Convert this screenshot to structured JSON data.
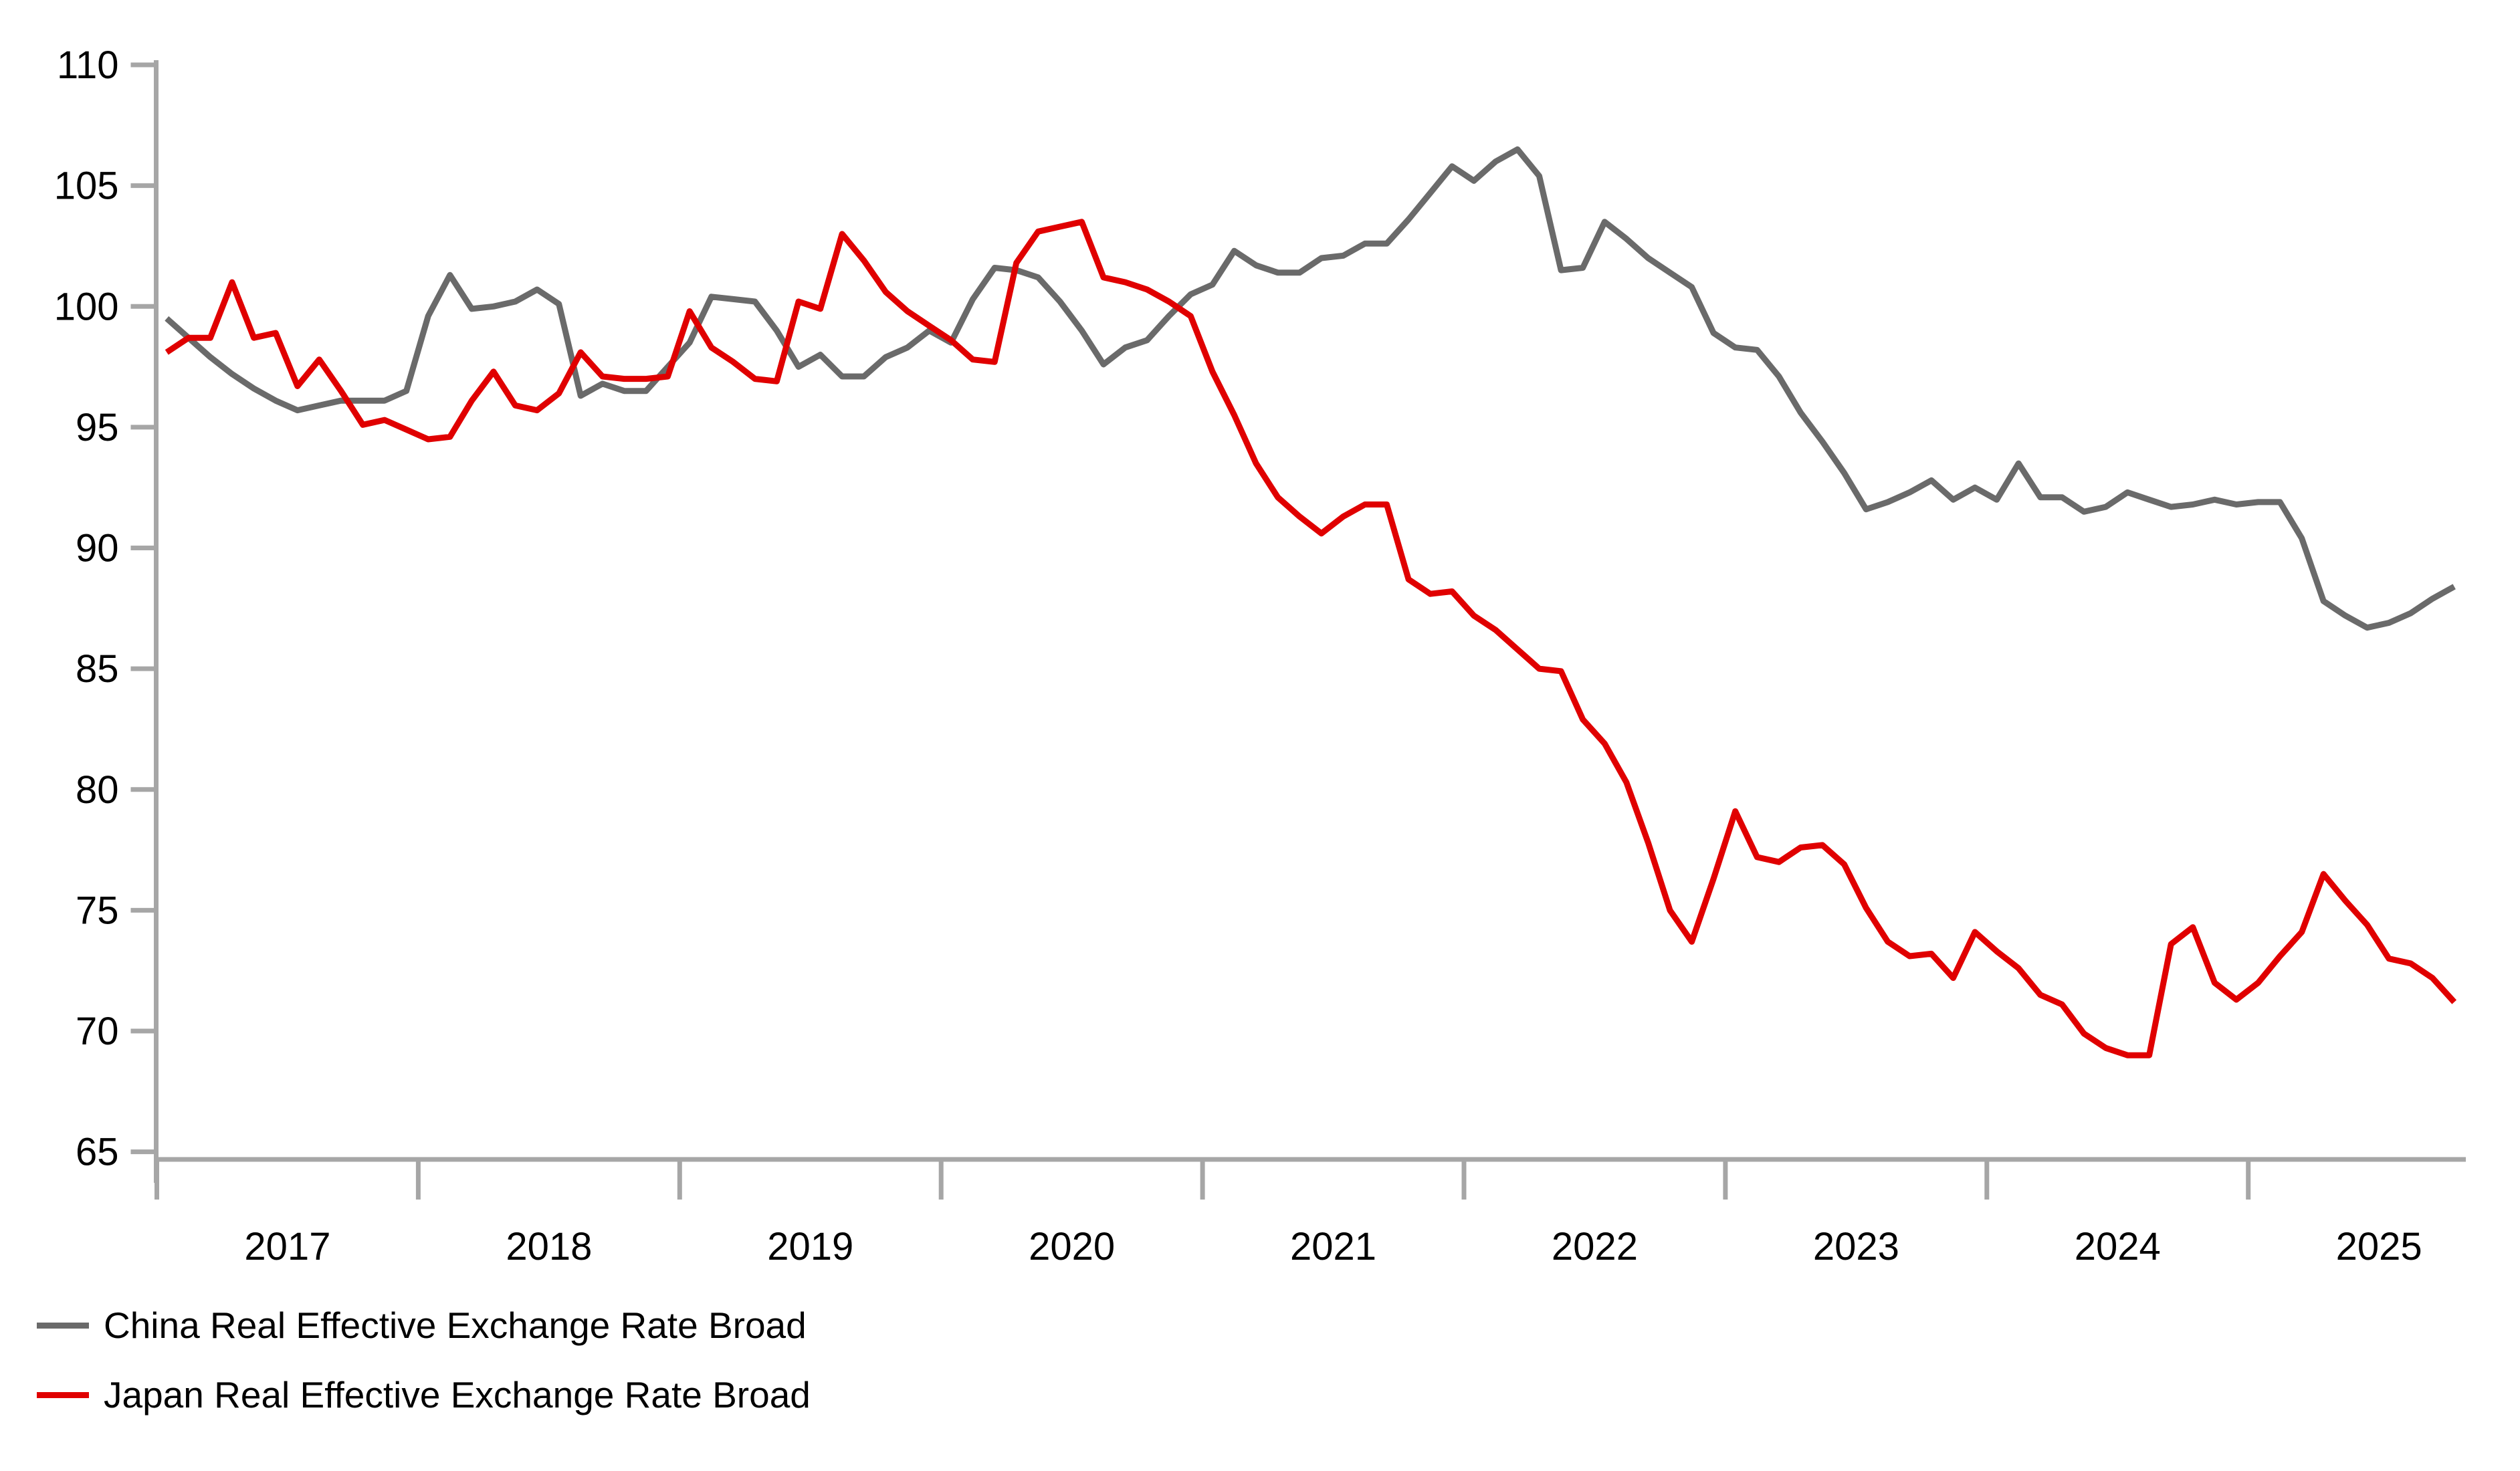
{
  "chart_data": {
    "type": "line",
    "title": "",
    "xlabel": "",
    "ylabel": "",
    "frequency": "monthly",
    "start_period": "2017-01",
    "end_period": "2025-10",
    "grid": false,
    "legend_position": "bottom-left",
    "y_axis": {
      "min": 65,
      "max": 110,
      "step": 5,
      "tick_labels": [
        65,
        70,
        75,
        80,
        85,
        90,
        95,
        100,
        105,
        110
      ]
    },
    "x_axis": {
      "year_labels": [
        "2017",
        "2018",
        "2019",
        "2020",
        "2021",
        "2022",
        "2023",
        "2024",
        "2025"
      ]
    },
    "axis_color": "#a6a6a6",
    "series": [
      {
        "name": "China Real Effective Exchange Rate Broad",
        "color": "#6a6a6a",
        "values": [
          99.5,
          98.7,
          97.9,
          97.2,
          96.6,
          96.1,
          95.7,
          95.9,
          96.1,
          96.1,
          96.1,
          96.5,
          99.6,
          101.3,
          99.9,
          100.0,
          100.2,
          100.7,
          100.1,
          96.3,
          96.8,
          96.5,
          96.5,
          97.5,
          98.5,
          100.4,
          100.3,
          100.2,
          99.0,
          97.5,
          98.0,
          97.1,
          97.1,
          97.9,
          98.3,
          99.0,
          98.5,
          100.3,
          101.6,
          101.5,
          101.2,
          100.2,
          99.0,
          97.6,
          98.3,
          98.6,
          99.6,
          100.5,
          100.9,
          102.3,
          101.7,
          101.4,
          101.4,
          102.0,
          102.1,
          102.6,
          102.6,
          103.6,
          104.7,
          105.8,
          105.2,
          106.0,
          106.5,
          105.4,
          101.5,
          101.6,
          103.5,
          102.8,
          102.0,
          101.4,
          100.8,
          98.9,
          98.3,
          98.2,
          97.1,
          95.6,
          94.4,
          93.1,
          91.6,
          91.9,
          92.3,
          92.8,
          92.0,
          92.5,
          92.0,
          93.5,
          92.1,
          92.1,
          91.5,
          91.7,
          92.3,
          92.0,
          91.7,
          91.8,
          92.0,
          91.8,
          91.9,
          91.9,
          90.4,
          87.8,
          87.2,
          86.7,
          86.9,
          87.3,
          87.9,
          88.4
        ]
      },
      {
        "name": "Japan Real Effective Exchange Rate Broad",
        "color": "#e00000",
        "values": [
          98.1,
          98.7,
          98.7,
          101.0,
          98.7,
          98.9,
          96.7,
          97.8,
          96.5,
          95.1,
          95.3,
          94.9,
          94.5,
          94.6,
          96.1,
          97.3,
          95.9,
          95.7,
          96.4,
          98.1,
          97.1,
          97.0,
          97.0,
          97.1,
          99.8,
          98.3,
          97.7,
          97.0,
          96.9,
          100.2,
          99.9,
          103.0,
          101.9,
          100.6,
          99.8,
          99.2,
          98.6,
          97.8,
          97.7,
          101.8,
          103.1,
          103.3,
          103.5,
          101.2,
          101.0,
          100.7,
          100.2,
          99.6,
          97.3,
          95.5,
          93.5,
          92.1,
          91.3,
          90.6,
          91.3,
          91.8,
          91.8,
          88.7,
          88.1,
          88.2,
          87.2,
          86.6,
          85.8,
          85.0,
          84.9,
          82.9,
          81.9,
          80.3,
          77.8,
          75.0,
          73.7,
          76.3,
          79.1,
          77.2,
          77.0,
          77.6,
          77.7,
          76.9,
          75.1,
          73.7,
          73.1,
          73.2,
          72.2,
          74.1,
          73.3,
          72.6,
          71.5,
          71.1,
          69.9,
          69.3,
          69.0,
          69.0,
          73.6,
          74.3,
          72.0,
          71.3,
          72.0,
          73.1,
          74.1,
          76.5,
          75.4,
          74.4,
          73.0,
          72.8,
          72.2,
          71.2
        ]
      }
    ]
  },
  "legend": {
    "items": [
      {
        "label": "China Real Effective Exchange Rate Broad",
        "color": "#6a6a6a"
      },
      {
        "label": "Japan Real Effective Exchange Rate Broad",
        "color": "#e00000"
      }
    ]
  }
}
